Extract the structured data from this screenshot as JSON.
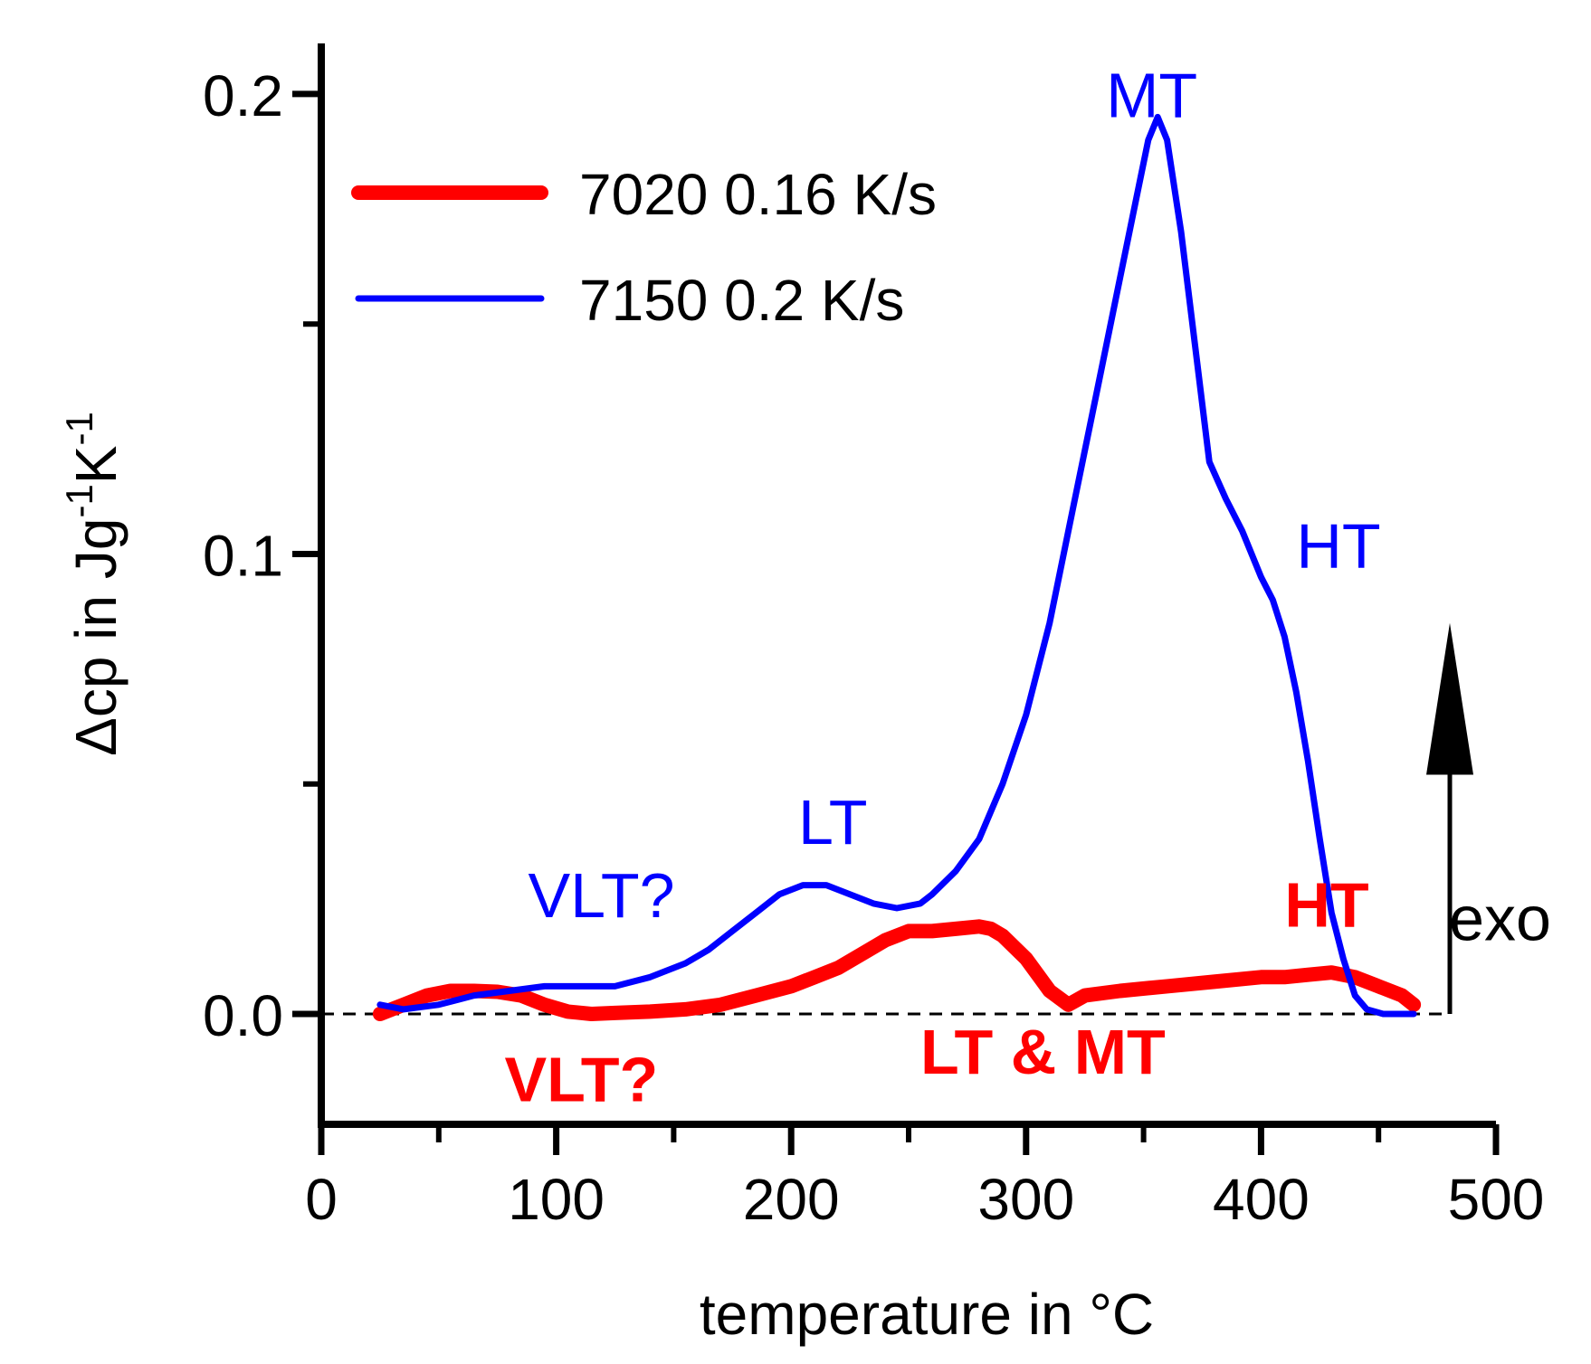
{
  "chart_data": {
    "type": "line",
    "title": "",
    "xlabel": "temperature in °C",
    "ylabel": "Δcp in Jg-1K-1",
    "ylabel_parts": {
      "base": "Δcp in Jg",
      "sup1": "-1",
      "mid": "K",
      "sup2": "-1"
    },
    "xlim": [
      0,
      500
    ],
    "ylim": [
      -0.024,
      0.211
    ],
    "x_ticks": [
      0,
      100,
      200,
      300,
      400,
      500
    ],
    "x_tick_labels": [
      "0",
      "100",
      "200",
      "300",
      "400",
      "500"
    ],
    "y_ticks": [
      0.0,
      0.1,
      0.2
    ],
    "y_tick_labels": [
      "0.0",
      "0.1",
      "0.2"
    ],
    "baseline": 0.0,
    "legend_position": "top-left",
    "series": [
      {
        "name": "7020 0.16 K/s",
        "color": "#ff0000",
        "style": "thick",
        "x": [
          25,
          35,
          45,
          55,
          65,
          75,
          85,
          95,
          105,
          115,
          125,
          140,
          155,
          170,
          185,
          200,
          210,
          220,
          230,
          240,
          250,
          260,
          270,
          280,
          285,
          290,
          300,
          310,
          318,
          325,
          340,
          360,
          380,
          400,
          410,
          420,
          430,
          440,
          450,
          460,
          465
        ],
        "values": [
          0.0,
          0.002,
          0.004,
          0.005,
          0.005,
          0.0048,
          0.004,
          0.002,
          0.0005,
          0.0,
          0.0002,
          0.0005,
          0.001,
          0.002,
          0.004,
          0.006,
          0.008,
          0.01,
          0.013,
          0.016,
          0.018,
          0.018,
          0.0185,
          0.019,
          0.0185,
          0.017,
          0.012,
          0.005,
          0.002,
          0.004,
          0.005,
          0.006,
          0.007,
          0.008,
          0.008,
          0.0085,
          0.009,
          0.008,
          0.006,
          0.004,
          0.002
        ]
      },
      {
        "name": "7150 0.2 K/s",
        "color": "#0000ff",
        "style": "thin",
        "x": [
          25,
          35,
          50,
          65,
          80,
          95,
          110,
          125,
          140,
          155,
          165,
          175,
          185,
          195,
          205,
          215,
          225,
          235,
          245,
          255,
          260,
          270,
          280,
          290,
          300,
          310,
          320,
          330,
          340,
          348,
          352,
          356,
          360,
          366,
          372,
          378,
          385,
          392,
          400,
          405,
          410,
          415,
          420,
          425,
          430,
          435,
          440,
          445,
          452,
          458,
          465
        ],
        "values": [
          0.002,
          0.001,
          0.002,
          0.004,
          0.005,
          0.006,
          0.006,
          0.006,
          0.008,
          0.011,
          0.014,
          0.018,
          0.022,
          0.026,
          0.028,
          0.028,
          0.026,
          0.024,
          0.023,
          0.024,
          0.026,
          0.031,
          0.038,
          0.05,
          0.065,
          0.085,
          0.11,
          0.135,
          0.16,
          0.18,
          0.19,
          0.195,
          0.19,
          0.17,
          0.145,
          0.12,
          0.112,
          0.105,
          0.095,
          0.09,
          0.082,
          0.07,
          0.055,
          0.038,
          0.022,
          0.012,
          0.004,
          0.001,
          0.0,
          0.0,
          0.0
        ]
      }
    ],
    "annotations": [
      {
        "text": "MT",
        "x": 334,
        "y": 0.195,
        "color": "#0000ff",
        "bold": false
      },
      {
        "text": "HT",
        "x": 415,
        "y": 0.097,
        "color": "#0000ff",
        "bold": false
      },
      {
        "text": "LT",
        "x": 203,
        "y": 0.037,
        "color": "#0000ff",
        "bold": false
      },
      {
        "text": "VLT?",
        "x": 88,
        "y": 0.021,
        "color": "#0000ff",
        "bold": false
      },
      {
        "text": "HT",
        "x": 410,
        "y": 0.019,
        "color": "#ff0000",
        "bold": true
      },
      {
        "text": "VLT?",
        "x": 78,
        "y": -0.019,
        "color": "#ff0000",
        "bold": true
      },
      {
        "text": "LT & MT",
        "x": 255,
        "y": -0.013,
        "color": "#ff0000",
        "bold": true
      },
      {
        "text": "exo",
        "x": 480,
        "y": 0.016,
        "color": "#000000",
        "bold": false
      }
    ]
  }
}
